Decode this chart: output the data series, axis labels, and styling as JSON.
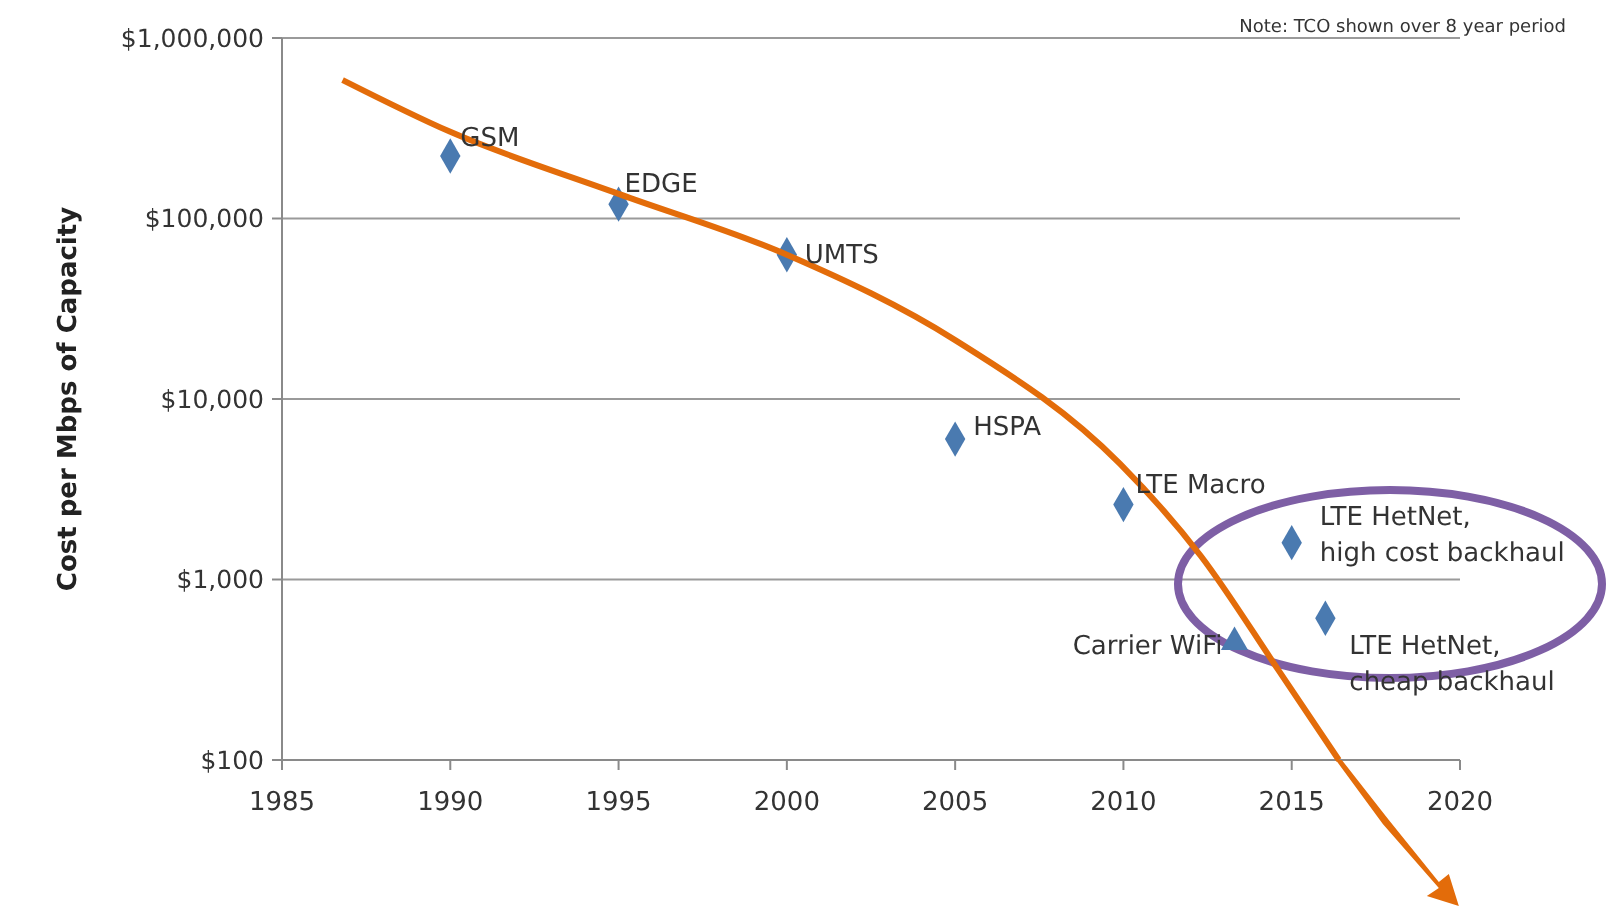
{
  "chart_data": {
    "type": "scatter",
    "ylabel": "Cost per Mbps of Capacity",
    "xlim": [
      1985,
      2020
    ],
    "xticks": [
      1985,
      1990,
      1995,
      2000,
      2005,
      2010,
      2015,
      2020
    ],
    "ylim": [
      100,
      1000000
    ],
    "log": "y",
    "yticks": [
      {
        "value": 100,
        "label": "$100"
      },
      {
        "value": 1000,
        "label": "$1,000"
      },
      {
        "value": 10000,
        "label": "$10,000"
      },
      {
        "value": 100000,
        "label": "$100,000"
      },
      {
        "value": 1000000,
        "label": "$1,000,000"
      }
    ],
    "grid": "y",
    "series": [
      {
        "color": "#4a7ab0",
        "marker": "diamond",
        "x": [
          1990,
          1995,
          2000,
          2005,
          2010,
          2015,
          2016
        ],
        "values": [
          222000,
          120000,
          63000,
          6000,
          2600,
          1600,
          610
        ]
      },
      {
        "color": "#4a7ab0",
        "marker": "triangle",
        "x": [
          2013.3
        ],
        "values": [
          450
        ]
      },
      {
        "type": "line",
        "color": "#e36c0a",
        "x": [
          1986.8,
          1990,
          1995,
          2000,
          2005,
          2009.9,
          2012.3,
          2014.6,
          2016.4
        ],
        "values": [
          585000,
          302000,
          137000,
          63000,
          21200,
          4370,
          1350,
          316,
          100
        ]
      }
    ],
    "annotations": [
      {
        "text": "GSM",
        "x": 1990,
        "y": 222000
      },
      {
        "text": "EDGE",
        "x": 1995,
        "y": 120000
      },
      {
        "text": "UMTS",
        "x": 2000,
        "y": 63000
      },
      {
        "text": "HSPA",
        "x": 2005,
        "y": 6000
      },
      {
        "text": "LTE Macro",
        "x": 2010,
        "y": 2600
      },
      {
        "text": "LTE HetNet,\nhigh cost backhaul",
        "x": 2015,
        "y": 1600
      },
      {
        "text": "LTE HetNet,\ncheap backhaul",
        "x": 2016,
        "y": 610
      },
      {
        "text": "Carrier WiFi",
        "x": 2013.3,
        "y": 450
      },
      "Note:  TCO shown over 8 year period"
    ]
  }
}
